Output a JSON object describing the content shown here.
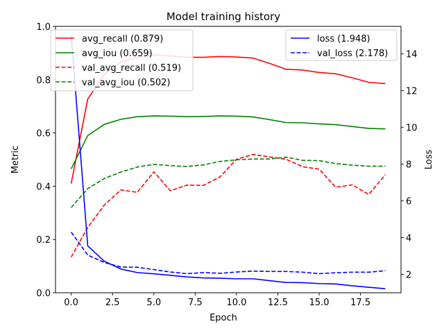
{
  "chart_data": {
    "type": "line",
    "title": "Model training history",
    "xlabel": "Epoch",
    "ylabel": "Metric",
    "y2label": "Loss",
    "xlim": [
      -0.95,
      19.95
    ],
    "ylim": [
      0,
      1
    ],
    "y2lim": [
      1.0,
      15.5
    ],
    "xticks": [
      0.0,
      2.5,
      5.0,
      7.5,
      10.0,
      12.5,
      15.0,
      17.5
    ],
    "xtick_labels": [
      "0.0",
      "2.5",
      "5.0",
      "7.5",
      "10.0",
      "12.5",
      "15.0",
      "17.5"
    ],
    "yticks": [
      0.0,
      0.2,
      0.4,
      0.6,
      0.8,
      1.0
    ],
    "ytick_labels": [
      "0.0",
      "0.2",
      "0.4",
      "0.6",
      "0.8",
      "1.0"
    ],
    "y2ticks": [
      2,
      4,
      6,
      8,
      10,
      12,
      14
    ],
    "y2tick_labels": [
      "2",
      "4",
      "6",
      "8",
      "10",
      "12",
      "14"
    ],
    "x": [
      0,
      1,
      2,
      3,
      4,
      5,
      6,
      7,
      8,
      9,
      10,
      11,
      12,
      13,
      14,
      15,
      16,
      17,
      18,
      19
    ],
    "series": [
      {
        "name": "avg_recall (0.879)",
        "axis": "left",
        "color": "#ff0000",
        "dashed": false,
        "values": [
          0.41,
          0.727,
          0.82,
          0.866,
          0.884,
          0.893,
          0.889,
          0.884,
          0.884,
          0.887,
          0.885,
          0.881,
          0.861,
          0.839,
          0.836,
          0.827,
          0.822,
          0.807,
          0.79,
          0.785
        ]
      },
      {
        "name": "avg_iou (0.659)",
        "axis": "left",
        "color": "#008000",
        "dashed": false,
        "values": [
          0.465,
          0.59,
          0.632,
          0.651,
          0.661,
          0.664,
          0.663,
          0.661,
          0.662,
          0.664,
          0.663,
          0.66,
          0.65,
          0.639,
          0.638,
          0.634,
          0.631,
          0.624,
          0.617,
          0.615
        ]
      },
      {
        "name": "val_avg_recall (0.519)",
        "axis": "left",
        "color": "#ff0000",
        "dashed": true,
        "values": [
          0.134,
          0.245,
          0.329,
          0.386,
          0.377,
          0.454,
          0.383,
          0.404,
          0.403,
          0.435,
          0.501,
          0.519,
          0.51,
          0.501,
          0.473,
          0.464,
          0.396,
          0.405,
          0.369,
          0.443
        ]
      },
      {
        "name": "val_avg_iou (0.502)",
        "axis": "left",
        "color": "#008000",
        "dashed": true,
        "values": [
          0.32,
          0.391,
          0.429,
          0.453,
          0.472,
          0.482,
          0.477,
          0.474,
          0.48,
          0.493,
          0.499,
          0.502,
          0.502,
          0.509,
          0.497,
          0.496,
          0.485,
          0.479,
          0.475,
          0.475
        ]
      },
      {
        "name": "loss (1.948)",
        "axis": "right",
        "color": "#0000ff",
        "dashed": false,
        "values": [
          15.0,
          3.55,
          2.72,
          2.29,
          2.1,
          2.03,
          1.95,
          1.86,
          1.81,
          1.79,
          1.76,
          1.76,
          1.66,
          1.56,
          1.55,
          1.5,
          1.48,
          1.38,
          1.3,
          1.22
        ]
      },
      {
        "name": "val_loss (2.178)",
        "axis": "right",
        "color": "#0000ff",
        "dashed": true,
        "values": [
          4.3,
          3.05,
          2.65,
          2.4,
          2.39,
          2.26,
          2.13,
          2.04,
          2.1,
          2.06,
          2.13,
          2.18,
          2.16,
          2.16,
          2.12,
          2.04,
          2.09,
          2.12,
          2.12,
          2.2
        ]
      }
    ],
    "legends": [
      {
        "placement": "upper-left",
        "series": [
          0,
          1,
          2,
          3
        ]
      },
      {
        "placement": "upper-right",
        "series": [
          4,
          5
        ]
      }
    ]
  }
}
